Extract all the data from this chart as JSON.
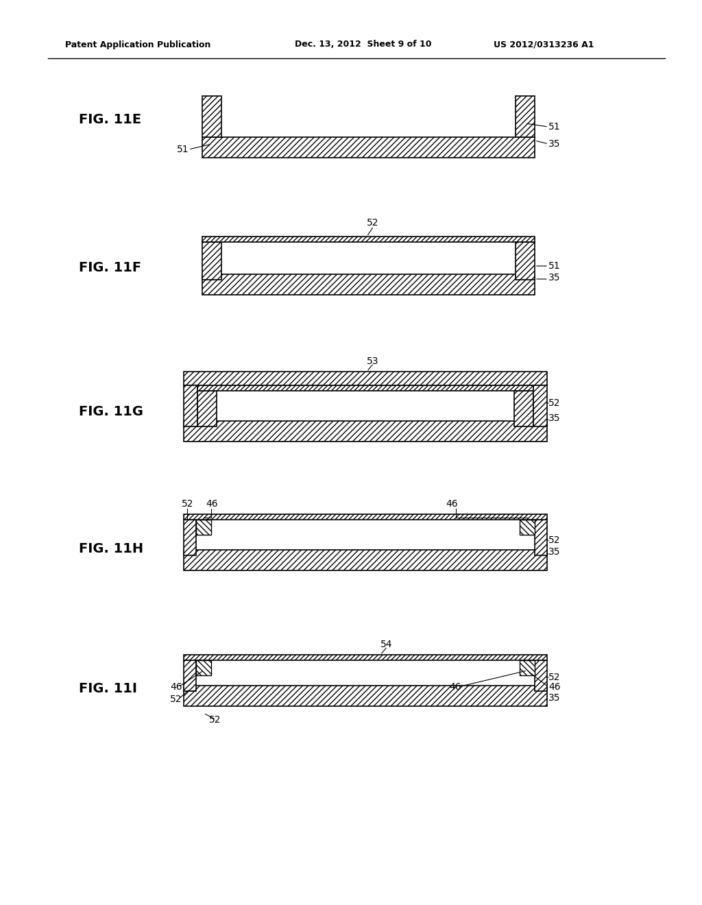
{
  "title_left": "Patent Application Publication",
  "title_mid": "Dec. 13, 2012  Sheet 9 of 10",
  "title_right": "US 2012/0313236 A1",
  "figures": [
    {
      "label": "FIG. 11E",
      "index": 0
    },
    {
      "label": "FIG. 11F",
      "index": 1
    },
    {
      "label": "FIG. 11G",
      "index": 2
    },
    {
      "label": "FIG. 11H",
      "index": 3
    },
    {
      "label": "FIG. 11I",
      "index": 4
    }
  ],
  "bg_color": "#ffffff",
  "line_color": "#000000",
  "hatch_color": "#000000",
  "hatch_bg": "#ffffff"
}
